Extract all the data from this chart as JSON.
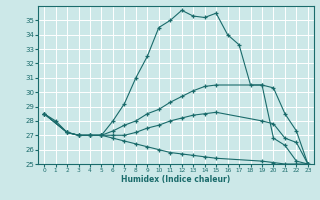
{
  "xlabel": "Humidex (Indice chaleur)",
  "background_color": "#cce8e8",
  "grid_color": "#ffffff",
  "line_color": "#1a6b6b",
  "xlim": [
    -0.5,
    23.5
  ],
  "ylim": [
    25,
    36
  ],
  "yticks": [
    25,
    26,
    27,
    28,
    29,
    30,
    31,
    32,
    33,
    34,
    35
  ],
  "xticks": [
    0,
    1,
    2,
    3,
    4,
    5,
    6,
    7,
    8,
    9,
    10,
    11,
    12,
    13,
    14,
    15,
    16,
    17,
    18,
    19,
    20,
    21,
    22,
    23
  ],
  "lines": [
    {
      "x": [
        0,
        1,
        2,
        3,
        4,
        5,
        6,
        7,
        8,
        9,
        10,
        11,
        12,
        13,
        14,
        15,
        16,
        17,
        18,
        19,
        20,
        21,
        22,
        23
      ],
      "y": [
        28.5,
        28.0,
        27.2,
        27.0,
        27.0,
        27.0,
        28.0,
        29.2,
        31.0,
        32.5,
        34.5,
        35.0,
        35.7,
        35.3,
        35.2,
        35.5,
        34.0,
        33.3,
        30.5,
        30.5,
        26.8,
        26.3,
        25.2,
        25.0
      ]
    },
    {
      "x": [
        0,
        2,
        3,
        4,
        5,
        6,
        7,
        8,
        9,
        10,
        11,
        12,
        13,
        14,
        15,
        19,
        20,
        21,
        22,
        23
      ],
      "y": [
        28.5,
        27.2,
        27.0,
        27.0,
        27.0,
        27.3,
        27.7,
        28.0,
        28.5,
        28.8,
        29.3,
        29.7,
        30.1,
        30.4,
        30.5,
        30.5,
        30.3,
        28.5,
        27.3,
        25.0
      ]
    },
    {
      "x": [
        0,
        2,
        3,
        4,
        5,
        6,
        7,
        8,
        9,
        10,
        11,
        12,
        13,
        14,
        15,
        19,
        20,
        21,
        22,
        23
      ],
      "y": [
        28.5,
        27.2,
        27.0,
        27.0,
        27.0,
        27.0,
        27.0,
        27.2,
        27.5,
        27.7,
        28.0,
        28.2,
        28.4,
        28.5,
        28.6,
        28.0,
        27.8,
        26.8,
        26.5,
        25.0
      ]
    },
    {
      "x": [
        0,
        2,
        3,
        4,
        5,
        6,
        7,
        8,
        9,
        10,
        11,
        12,
        13,
        14,
        15,
        19,
        20,
        21,
        22,
        23
      ],
      "y": [
        28.5,
        27.2,
        27.0,
        27.0,
        27.0,
        26.8,
        26.6,
        26.4,
        26.2,
        26.0,
        25.8,
        25.7,
        25.6,
        25.5,
        25.4,
        25.2,
        25.1,
        25.0,
        25.0,
        25.0
      ]
    }
  ]
}
